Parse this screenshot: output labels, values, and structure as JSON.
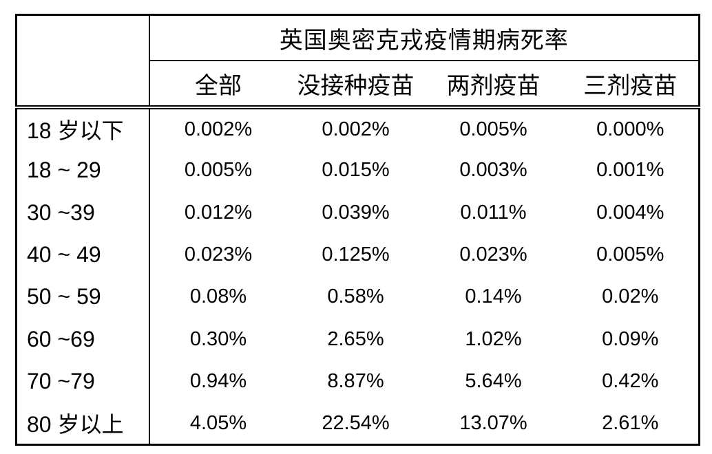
{
  "chart_data": {
    "type": "table",
    "title": "英国奥密克戎疫情期病死率",
    "columns": [
      "全部",
      "没接种疫苗",
      "两剂疫苗",
      "三剂疫苗"
    ],
    "rows": [
      {
        "label": "18 岁以下",
        "values": [
          "0.002%",
          "0.002%",
          "0.005%",
          "0.000%"
        ]
      },
      {
        "label": "18 ~ 29",
        "values": [
          "0.005%",
          "0.015%",
          "0.003%",
          "0.001%"
        ]
      },
      {
        "label": "30 ~39",
        "values": [
          "0.012%",
          "0.039%",
          "0.011%",
          "0.004%"
        ]
      },
      {
        "label": "40 ~ 49",
        "values": [
          "0.023%",
          "0.125%",
          "0.023%",
          "0.005%"
        ]
      },
      {
        "label": "50 ~ 59",
        "values": [
          "0.08%",
          "0.58%",
          "0.14%",
          "0.02%"
        ]
      },
      {
        "label": "60 ~69",
        "values": [
          "0.30%",
          "2.65%",
          "1.02%",
          "0.09%"
        ]
      },
      {
        "label": "70 ~79",
        "values": [
          "0.94%",
          "8.87%",
          "5.64%",
          "0.42%"
        ]
      },
      {
        "label": "80 岁以上",
        "values": [
          "4.05%",
          "22.54%",
          "13.07%",
          "2.61%"
        ]
      }
    ],
    "layout": {
      "grid": "outer frame, label-column divider, single rule under title, double rule under column headers, no rules between body rows",
      "legend_position": "none"
    },
    "colors": {
      "border": "#000000",
      "text": "#000000",
      "background": "#ffffff"
    }
  }
}
